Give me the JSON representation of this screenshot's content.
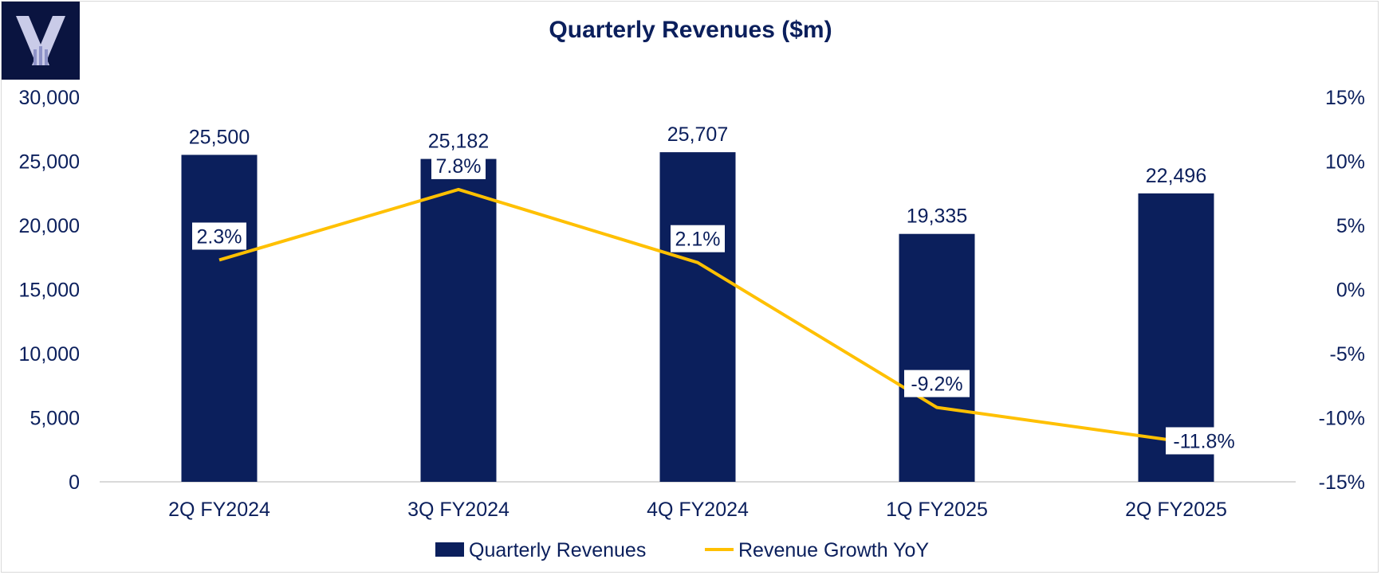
{
  "chart_data": {
    "type": "bar",
    "title": "Quarterly Revenues ($m)",
    "categories": [
      "2Q FY2024",
      "3Q FY2024",
      "4Q FY2024",
      "1Q FY2025",
      "2Q FY2025"
    ],
    "series": [
      {
        "name": "Quarterly Revenues",
        "type": "bar",
        "axis": "left",
        "color": "#0b1f5c",
        "values": [
          25500,
          25182,
          25707,
          19335,
          22496
        ],
        "labels": [
          "25,500",
          "25,182",
          "25,707",
          "19,335",
          "22,496"
        ]
      },
      {
        "name": "Revenue Growth YoY",
        "type": "line",
        "axis": "right",
        "color": "#ffc000",
        "values": [
          2.3,
          7.8,
          2.1,
          -9.2,
          -11.8
        ],
        "labels": [
          "2.3%",
          "7.8%",
          "2.1%",
          "-9.2%",
          "-11.8%"
        ]
      }
    ],
    "y_left": {
      "ylim": [
        0,
        30000
      ],
      "ticks": [
        0,
        5000,
        10000,
        15000,
        20000,
        25000,
        30000
      ],
      "tick_labels": [
        "0",
        "5,000",
        "10,000",
        "15,000",
        "20,000",
        "25,000",
        "30,000"
      ]
    },
    "y_right": {
      "ylim": [
        -15,
        15
      ],
      "ticks": [
        -15,
        -10,
        -5,
        0,
        5,
        10,
        15
      ],
      "tick_labels": [
        "-15%",
        "-10%",
        "-5%",
        "0%",
        "5%",
        "10%",
        "15%"
      ]
    },
    "grid": false,
    "legend_position": "bottom-center"
  },
  "logo": {
    "icon": "x-logo-icon",
    "background": "#0a1440"
  },
  "colors": {
    "text": "#0b1f5c",
    "axis": "#d9d9d9"
  }
}
